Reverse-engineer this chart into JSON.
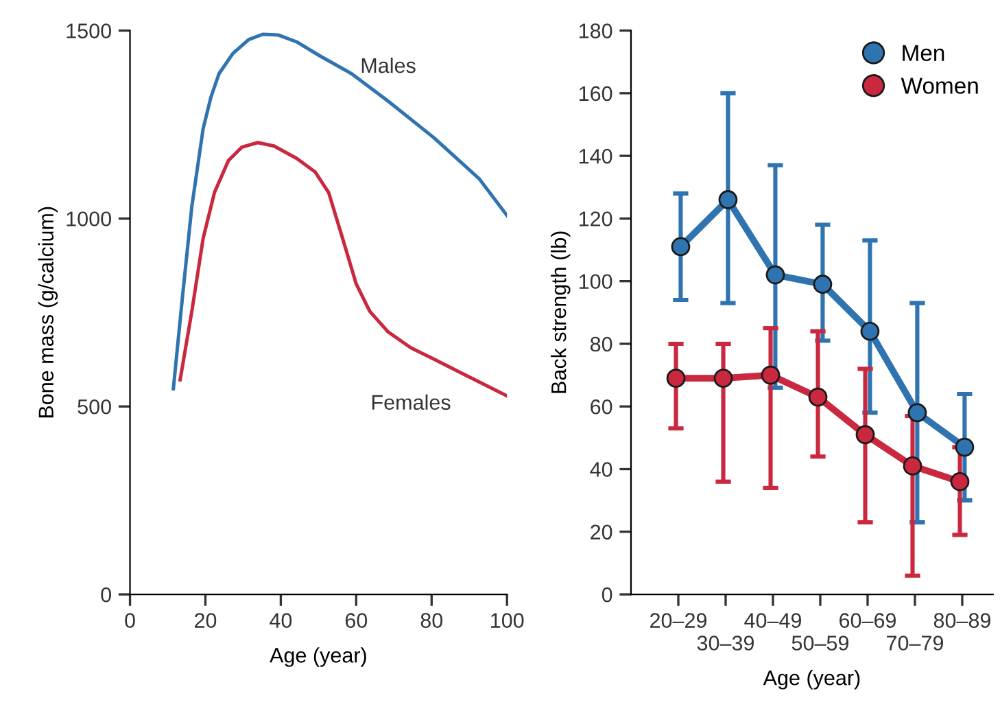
{
  "chart_data": [
    {
      "type": "line",
      "xlabel": "Age (year)",
      "ylabel": "Bone mass (g/calcium)",
      "xlim": [
        0,
        100
      ],
      "xticks": [
        0,
        20,
        40,
        60,
        80,
        100
      ],
      "ylim": [
        0,
        1500
      ],
      "yticks": [
        0,
        500,
        1000,
        1500
      ],
      "grid": false,
      "legend": false,
      "marker": "none",
      "line_style": "solid",
      "series": [
        {
          "name": "Males",
          "color": "#2f74b0",
          "x": [
            11.5,
            13.9,
            16.4,
            19.4,
            21.5,
            23.6,
            27.3,
            31.5,
            35.2,
            39.4,
            44.2,
            50.3,
            58.8,
            68.5,
            80.6,
            92.7,
            100
          ],
          "values": [
            547,
            790,
            1032,
            1239,
            1324,
            1385,
            1439,
            1476,
            1490,
            1488,
            1470,
            1433,
            1385,
            1312,
            1215,
            1105,
            1008
          ]
        },
        {
          "name": "Females",
          "color": "#c9283f",
          "x": [
            13.3,
            16.4,
            19.4,
            22.4,
            26.1,
            29.7,
            33.9,
            38.2,
            44.2,
            49.1,
            52.7,
            56.4,
            60,
            63.6,
            68.5,
            74.5,
            80.6,
            86.7,
            92.7,
            100
          ],
          "values": [
            571,
            753,
            947,
            1069,
            1154,
            1190,
            1202,
            1193,
            1160,
            1124,
            1069,
            947,
            826,
            753,
            698,
            656,
            626,
            595,
            565,
            528
          ]
        }
      ]
    },
    {
      "type": "line",
      "xlabel": "Age (year)",
      "ylabel": "Back strength (lb)",
      "categories": [
        "20–29",
        "30–39",
        "40–49",
        "50–59",
        "60–69",
        "70–79",
        "80–89"
      ],
      "ylim": [
        0,
        180
      ],
      "yticks": [
        0,
        20,
        40,
        60,
        80,
        100,
        120,
        140,
        160,
        180
      ],
      "grid": false,
      "legend": "top right",
      "marker": "circle",
      "line_style": "solid",
      "series": [
        {
          "name": "Men",
          "color": "#2f74b0",
          "values": [
            111,
            126,
            102,
            99,
            84,
            58,
            47
          ],
          "errors": [
            [
              94,
              128
            ],
            [
              93,
              160
            ],
            [
              66,
              137
            ],
            [
              81,
              118
            ],
            [
              58,
              113
            ],
            [
              23,
              93
            ],
            [
              30,
              64
            ]
          ]
        },
        {
          "name": "Women",
          "color": "#c9283f",
          "values": [
            69,
            69,
            70,
            63,
            51,
            41,
            36
          ],
          "errors": [
            [
              53,
              80
            ],
            [
              36,
              80
            ],
            [
              34,
              85
            ],
            [
              44,
              84
            ],
            [
              23,
              72
            ],
            [
              6,
              57
            ],
            [
              19,
              47
            ]
          ]
        }
      ]
    }
  ]
}
